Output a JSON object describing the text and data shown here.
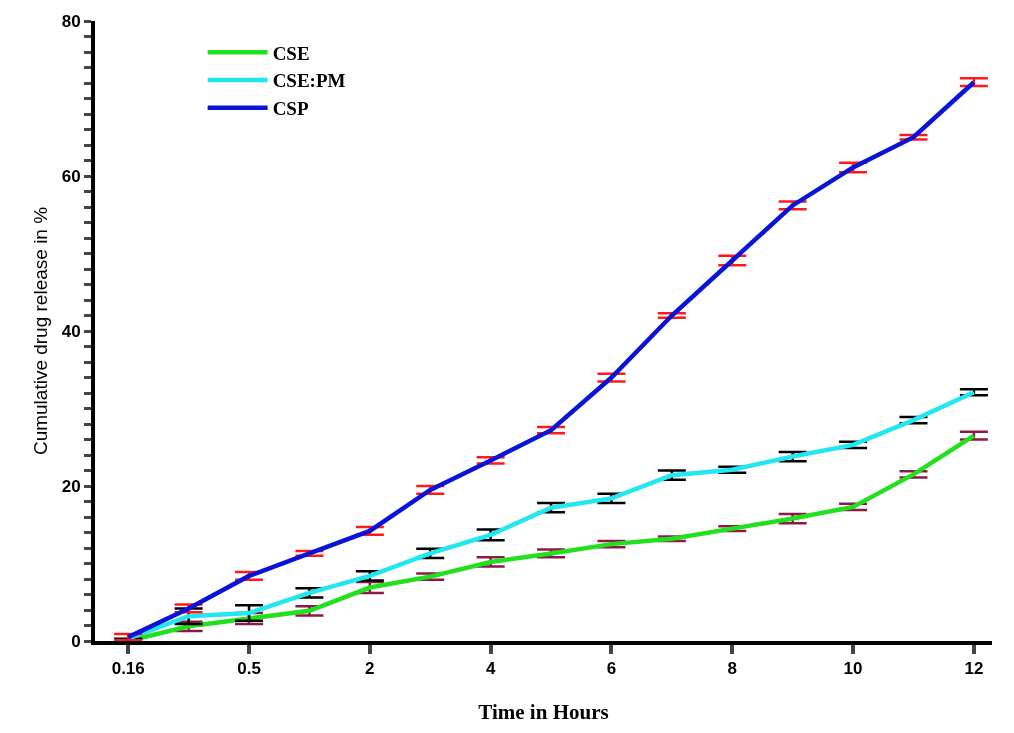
{
  "chart_data": {
    "type": "line",
    "xlabel": "Time in Hours",
    "ylabel": "Cumulative drug release in %",
    "categories": [
      "0.16",
      null,
      "0.5",
      null,
      "2",
      null,
      "4",
      null,
      "6",
      null,
      "8",
      null,
      "10",
      null,
      "12"
    ],
    "series": [
      {
        "name": "CSE",
        "color": "#22e01e",
        "values": [
          0,
          1.9,
          2.9,
          3.9,
          6.9,
          8.3,
          10.2,
          11.3,
          12.5,
          13.2,
          14.5,
          15.8,
          17.3,
          21.5,
          26.5
        ],
        "errors": [
          null,
          0.6,
          0.7,
          0.6,
          0.7,
          0.4,
          0.6,
          0.5,
          0.4,
          0.3,
          0.3,
          0.6,
          0.4,
          0.4,
          0.5
        ]
      },
      {
        "name": "CSE:PM",
        "color": "#22e6f0",
        "values": [
          0.3,
          3.2,
          3.6,
          6.2,
          8.4,
          11.3,
          13.7,
          17.2,
          18.4,
          21.4,
          22.1,
          23.8,
          25.3,
          28.5,
          32.1
        ],
        "errors": [
          null,
          1.0,
          1.0,
          0.6,
          0.6,
          0.6,
          0.7,
          0.6,
          0.6,
          0.6,
          0.4,
          0.6,
          0.4,
          0.4,
          0.4
        ]
      },
      {
        "name": "CSP",
        "color": "#0a14d8",
        "values": [
          0.5,
          4.2,
          8.4,
          11.3,
          14.2,
          19.5,
          23.3,
          27.2,
          34.0,
          42.0,
          49.1,
          56.2,
          61.1,
          65.0,
          72.1
        ],
        "errors": [
          0.4,
          0.5,
          0.5,
          0.3,
          0.5,
          0.5,
          0.4,
          0.4,
          0.5,
          0.3,
          0.6,
          0.5,
          0.6,
          0.3,
          0.5
        ]
      }
    ],
    "ylim": [
      0,
      80
    ],
    "yticks": [
      0,
      {
        "value": 2,
        "label": null
      },
      {
        "value": 4,
        "label": null
      },
      {
        "value": 6,
        "label": null
      },
      {
        "value": 8,
        "label": null
      },
      {
        "value": 10,
        "label": null
      },
      {
        "value": 12,
        "label": null
      },
      {
        "value": 14,
        "label": null
      },
      {
        "value": 16,
        "label": null
      },
      {
        "value": 18,
        "label": null
      },
      20,
      {
        "value": 22,
        "label": null
      },
      {
        "value": 24,
        "label": null
      },
      {
        "value": 26,
        "label": null
      },
      {
        "value": 28,
        "label": null
      },
      {
        "value": 30,
        "label": null
      },
      {
        "value": 32,
        "label": null
      },
      {
        "value": 34,
        "label": null
      },
      {
        "value": 36,
        "label": null
      },
      {
        "value": 38,
        "label": null
      },
      40,
      {
        "value": 42,
        "label": null
      },
      {
        "value": 44,
        "label": null
      },
      {
        "value": 46,
        "label": null
      },
      {
        "value": 48,
        "label": null
      },
      {
        "value": 50,
        "label": null
      },
      {
        "value": 52,
        "label": null
      },
      {
        "value": 54,
        "label": null
      },
      {
        "value": 56,
        "label": null
      },
      {
        "value": 58,
        "label": null
      },
      60,
      {
        "value": 62,
        "label": null
      },
      {
        "value": 64,
        "label": null
      },
      {
        "value": 66,
        "label": null
      },
      {
        "value": 68,
        "label": null
      },
      {
        "value": 70,
        "label": null
      },
      {
        "value": 72,
        "label": null
      },
      {
        "value": 74,
        "label": null
      },
      {
        "value": 76,
        "label": null
      },
      {
        "value": 78,
        "label": null
      },
      80
    ],
    "legend": "top left",
    "marker": "none",
    "line_style": "solid"
  }
}
